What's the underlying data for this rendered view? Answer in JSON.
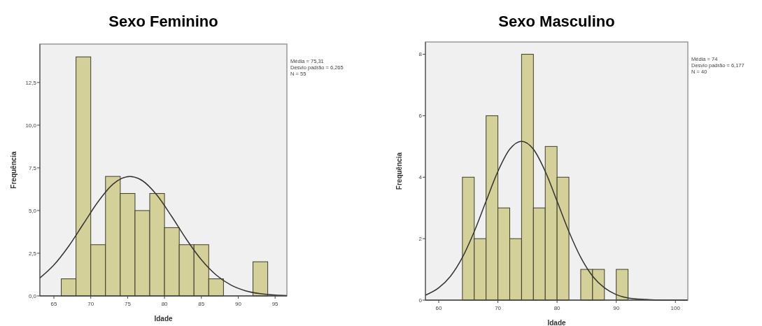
{
  "chart_data": [
    {
      "type": "histogram",
      "title": "Sexo Feminino",
      "xlabel": "Idade",
      "ylabel": "Frequência",
      "bins": [
        66,
        68,
        70,
        72,
        74,
        76,
        78,
        80,
        82,
        84,
        86,
        88,
        90,
        92,
        94
      ],
      "series": [
        {
          "color": "#d4d09a",
          "values": [
            1,
            14,
            3,
            7,
            6,
            5,
            6,
            4,
            3,
            3,
            1,
            0,
            0,
            2
          ]
        },
        {
          "type": "line",
          "color": "#333333",
          "x": [
            63.1,
            65,
            67,
            69,
            71,
            73,
            75.3,
            77,
            79,
            81,
            83,
            85,
            87,
            89,
            91,
            93,
            95,
            96.6
          ],
          "values": [
            1.05,
            1.81,
            2.91,
            4.22,
            5.52,
            6.54,
            7.0,
            6.75,
            5.89,
            4.64,
            3.3,
            2.12,
            1.23,
            0.64,
            0.3,
            0.13,
            0.05,
            0.02
          ]
        }
      ],
      "xlim": [
        63.1,
        96.6
      ],
      "ylim": [
        0,
        14.75
      ],
      "xticks": [
        65,
        70,
        75,
        80,
        85,
        90,
        95
      ],
      "yticks": [
        {
          "value": 0,
          "label": "0,0"
        },
        {
          "value": 2.5,
          "label": "2,5"
        },
        {
          "value": 5,
          "label": "5,0"
        },
        {
          "value": 7.5,
          "label": "7,5"
        },
        {
          "value": 10,
          "label": "10,0"
        },
        {
          "value": 12.5,
          "label": "12,5"
        }
      ],
      "annotations": [
        "Média = 75,31",
        "Desvio padrão = 6,265",
        "N = 55"
      ]
    },
    {
      "type": "histogram",
      "title": "Sexo Masculino",
      "xlabel": "Idade",
      "ylabel": "Frequência",
      "bins": [
        64,
        66,
        68,
        70,
        72,
        74,
        76,
        78,
        80,
        82,
        84,
        86,
        88,
        90,
        92
      ],
      "series": [
        {
          "color": "#d4d09a",
          "values": [
            4,
            2,
            6,
            3,
            2,
            8,
            3,
            5,
            4,
            0,
            1,
            1,
            0,
            1
          ]
        },
        {
          "type": "line",
          "color": "#333333",
          "x": [
            57.75,
            60,
            62,
            64,
            66,
            68,
            70,
            72,
            74,
            76,
            78,
            80,
            82,
            84,
            86,
            88,
            90,
            92,
            95,
            98,
            102
          ],
          "values": [
            0.16,
            0.4,
            0.78,
            1.39,
            2.23,
            3.22,
            4.19,
            4.91,
            5.17,
            4.91,
            4.19,
            3.22,
            2.23,
            1.39,
            0.78,
            0.4,
            0.18,
            0.07,
            0.02,
            0,
            0
          ]
        }
      ],
      "xlim": [
        57.75,
        102.1
      ],
      "ylim": [
        0,
        8.4
      ],
      "xticks": [
        60,
        70,
        80,
        90,
        100
      ],
      "yticks": [
        0,
        2,
        4,
        6,
        8
      ],
      "annotations": [
        "Média = 74",
        "Desvio padrão = 6,177",
        "N = 40"
      ]
    }
  ]
}
